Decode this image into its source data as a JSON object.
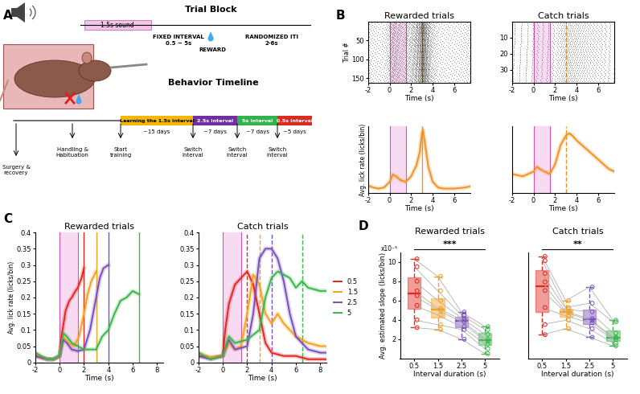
{
  "panel_labels": [
    "A",
    "B",
    "C",
    "D"
  ],
  "diagram": {
    "trial_block": {
      "title": "Trial Block",
      "sound": "1.5s sound",
      "interval": "FIXED INTERVAL\n0.5 ~ 5s",
      "reward": "REWARD",
      "iti": "RANDOMIZED ITI\n2-6s"
    },
    "timeline": {
      "title": "Behavior Timeline",
      "events": [
        "Surgery &\nrecovery",
        "Handling &\nHabituation",
        "Start\ntraining",
        "Switch\ninterval",
        "Switch\ninterval",
        "Switch\ninterval"
      ],
      "stages": [
        {
          "label": "Learning the 1.5s interval",
          "duration": "~15 days",
          "color": "#f5b700"
        },
        {
          "label": "2.5s interval",
          "duration": "~7 days",
          "color": "#7030a0"
        },
        {
          "label": "5s interval",
          "duration": "~7 days",
          "color": "#2fb34a"
        },
        {
          "label": "0.5s interval",
          "duration": "~5 days",
          "color": "#d92b1f"
        }
      ]
    }
  },
  "chart_data": [
    {
      "type": "raster",
      "title": "Rewarded trials",
      "x_label": "Time (s)",
      "y_label": "Trial #",
      "xlim": [
        -2,
        7.5
      ],
      "xticks": [
        -2,
        0,
        2,
        4,
        6
      ],
      "ylim": [
        162,
        0
      ],
      "yticks": [
        50,
        100,
        150
      ],
      "n_trials": 160,
      "sound": [
        0,
        1.5
      ],
      "reward_markers": [
        {
          "x": 3,
          "color": "#f39223",
          "line_style": "solid"
        }
      ]
    },
    {
      "type": "raster",
      "title": "Catch trials",
      "x_label": "Time (s)",
      "xlim": [
        -2,
        7.5
      ],
      "xticks": [
        -2,
        0,
        2,
        4,
        6
      ],
      "ylim": [
        38,
        0
      ],
      "yticks": [
        10,
        20,
        30
      ],
      "n_trials": 37,
      "sound": [
        0,
        1.5
      ],
      "reward_markers": [
        {
          "x": 3,
          "color": "#f39223",
          "line_style": "dashed"
        }
      ]
    },
    {
      "type": "line",
      "x_label": "Time (s)",
      "y_label": "Avg. lick rate (licks/bin)",
      "xlim": [
        -2,
        7.5
      ],
      "xticks": [
        -2,
        0,
        2,
        4,
        6
      ],
      "ylim": [
        0,
        0.18
      ],
      "tick_labels": "x",
      "sound": [
        0,
        1.5
      ],
      "reward_markers": [
        {
          "x": 3,
          "color": "#f39223",
          "line_style": "solid"
        }
      ],
      "series": [
        {
          "color": "#f39223",
          "x": [
            -2,
            -1.5,
            -1,
            -0.5,
            0,
            0.3,
            0.6,
            1,
            1.5,
            2,
            2.5,
            2.8,
            3,
            3.1,
            3.3,
            3.6,
            4,
            4.5,
            5,
            6,
            7,
            7.5
          ],
          "values": [
            0.02,
            0.015,
            0.012,
            0.015,
            0.03,
            0.05,
            0.045,
            0.035,
            0.03,
            0.045,
            0.075,
            0.11,
            0.16,
            0.17,
            0.13,
            0.07,
            0.03,
            0.015,
            0.012,
            0.012,
            0.015,
            0.018
          ]
        }
      ]
    },
    {
      "type": "line",
      "x_label": "Time (s)",
      "xlim": [
        -2,
        7.5
      ],
      "xticks": [
        -2,
        0,
        2,
        4,
        6
      ],
      "ylim": [
        0,
        0.14
      ],
      "tick_labels": "x",
      "sound": [
        0,
        1.5
      ],
      "reward_markers": [
        {
          "x": 3,
          "color": "#f39223",
          "line_style": "dashed"
        }
      ],
      "series": [
        {
          "color": "#f39223",
          "x": [
            -2,
            -1,
            0,
            0.3,
            0.6,
            1,
            1.5,
            2,
            2.5,
            3,
            3.3,
            3.6,
            4,
            5,
            6,
            7,
            7.5
          ],
          "values": [
            0.04,
            0.035,
            0.045,
            0.055,
            0.05,
            0.045,
            0.04,
            0.06,
            0.1,
            0.12,
            0.125,
            0.12,
            0.11,
            0.09,
            0.07,
            0.05,
            0.045
          ]
        }
      ]
    },
    {
      "type": "line",
      "title": "Rewarded trials",
      "x_label": "Time (s)",
      "y_label": "Avg. lick rate (licks/bin)",
      "xlim": [
        -2,
        8.5
      ],
      "xticks": [
        -2,
        0,
        2,
        4,
        6,
        8
      ],
      "ylim": [
        0,
        0.4
      ],
      "yticks": [
        0,
        0.05,
        0.1,
        0.15,
        0.2,
        0.25,
        0.3,
        0.35,
        0.4
      ],
      "sound": [
        0,
        1.5
      ],
      "reward_markers": [
        {
          "x": 2,
          "color": "#e3271e",
          "line_style": "solid"
        },
        {
          "x": 3,
          "color": "#f5a021",
          "line_style": "solid"
        },
        {
          "x": 4,
          "color": "#7a4fbd",
          "line_style": "solid"
        },
        {
          "x": 6.5,
          "color": "#3cb54a",
          "line_style": "solid"
        }
      ],
      "series": [
        {
          "name": "0.5",
          "color": "#e3271e",
          "x": [
            -2,
            -1.5,
            -1,
            -0.5,
            0,
            0.2,
            0.5,
            0.8,
            1,
            1.3,
            1.5,
            1.8,
            2
          ],
          "values": [
            0.02,
            0.015,
            0.01,
            0.01,
            0.02,
            0.09,
            0.16,
            0.19,
            0.2,
            0.22,
            0.23,
            0.26,
            0.29
          ]
        },
        {
          "name": "1.5",
          "color": "#f5a021",
          "x": [
            -2,
            -1.5,
            -1,
            -0.5,
            0,
            0.3,
            0.7,
            1.2,
            1.6,
            2,
            2.3,
            2.6,
            3
          ],
          "values": [
            0.03,
            0.015,
            0.01,
            0.01,
            0.02,
            0.08,
            0.06,
            0.05,
            0.08,
            0.15,
            0.21,
            0.25,
            0.28
          ]
        },
        {
          "name": "2.5",
          "color": "#7a4fbd",
          "x": [
            -2,
            -1,
            -0.5,
            0,
            0.3,
            0.6,
            1,
            1.5,
            2,
            2.5,
            3,
            3.3,
            3.6,
            4
          ],
          "values": [
            0.02,
            0.01,
            0.01,
            0.02,
            0.07,
            0.06,
            0.04,
            0.035,
            0.04,
            0.1,
            0.2,
            0.26,
            0.29,
            0.3
          ]
        },
        {
          "name": "5",
          "color": "#3cb54a",
          "x": [
            -2,
            -1,
            -0.5,
            0,
            0.3,
            0.6,
            1,
            1.5,
            2,
            2.5,
            3,
            3.5,
            4,
            4.5,
            5,
            5.5,
            6,
            6.5
          ],
          "values": [
            0.03,
            0.01,
            0.01,
            0.02,
            0.09,
            0.08,
            0.06,
            0.05,
            0.04,
            0.04,
            0.04,
            0.08,
            0.1,
            0.15,
            0.19,
            0.2,
            0.22,
            0.21
          ]
        }
      ]
    },
    {
      "type": "line",
      "title": "Catch trials",
      "x_label": "Time (s)",
      "xlim": [
        -2,
        8.5
      ],
      "xticks": [
        -2,
        0,
        2,
        4,
        6,
        8
      ],
      "ylim": [
        0,
        0.4
      ],
      "yticks": [
        0,
        0.05,
        0.1,
        0.15,
        0.2,
        0.25,
        0.3,
        0.35,
        0.4
      ],
      "sound": [
        0,
        1.5
      ],
      "legend": "right",
      "reward_markers": [
        {
          "x": 2,
          "color": "#e3271e",
          "line_style": "dashed"
        },
        {
          "x": 3,
          "color": "#f5a021",
          "line_style": "dashed"
        },
        {
          "x": 4,
          "color": "#7a4fbd",
          "line_style": "dashed"
        },
        {
          "x": 6.5,
          "color": "#3cb54a",
          "line_style": "dashed"
        }
      ],
      "series": [
        {
          "name": "0.5",
          "color": "#e3271e",
          "x": [
            -2,
            -1,
            0,
            0.2,
            0.5,
            1,
            1.5,
            2,
            2.5,
            3,
            3.5,
            4,
            5,
            6,
            7,
            8,
            8.5
          ],
          "values": [
            0.02,
            0.015,
            0.02,
            0.1,
            0.18,
            0.24,
            0.26,
            0.28,
            0.24,
            0.15,
            0.06,
            0.03,
            0.02,
            0.02,
            0.01,
            0.01,
            0.01
          ]
        },
        {
          "name": "1.5",
          "color": "#f5a021",
          "x": [
            -2,
            -1,
            0,
            0.5,
            1,
            1.5,
            2,
            2.5,
            3,
            3.5,
            4,
            4.5,
            5,
            6,
            7,
            8,
            8.5
          ],
          "values": [
            0.03,
            0.015,
            0.02,
            0.06,
            0.04,
            0.05,
            0.15,
            0.27,
            0.24,
            0.15,
            0.12,
            0.15,
            0.12,
            0.08,
            0.06,
            0.05,
            0.05
          ]
        },
        {
          "name": "2.5",
          "color": "#7a4fbd",
          "x": [
            -2,
            -1,
            0,
            0.5,
            1,
            2,
            2.5,
            3,
            3.5,
            4,
            4.5,
            5,
            5.5,
            6,
            7,
            8,
            8.5
          ],
          "values": [
            0.02,
            0.01,
            0.02,
            0.07,
            0.04,
            0.05,
            0.15,
            0.32,
            0.35,
            0.35,
            0.32,
            0.25,
            0.15,
            0.08,
            0.04,
            0.03,
            0.03
          ]
        },
        {
          "name": "5",
          "color": "#3cb54a",
          "x": [
            -2,
            -1,
            0,
            0.5,
            1,
            2,
            3,
            3.5,
            4,
            4.5,
            5,
            5.5,
            6,
            6.5,
            7,
            8,
            8.5
          ],
          "values": [
            0.03,
            0.01,
            0.02,
            0.08,
            0.06,
            0.07,
            0.1,
            0.2,
            0.26,
            0.28,
            0.27,
            0.26,
            0.23,
            0.25,
            0.23,
            0.22,
            0.22
          ]
        }
      ]
    },
    {
      "type": "box",
      "title": "Rewarded trials",
      "x_label": "Interval duration (s)",
      "y_label": "Avg. estimated slope (licks/bin)",
      "y_multiplier": "x10⁻⁵",
      "categories": [
        "0.5",
        "1.5",
        "2.5",
        "5"
      ],
      "colors": [
        "#e3271e",
        "#f5a021",
        "#7a4fbd",
        "#3cb54a"
      ],
      "ylim": [
        0,
        11
      ],
      "yticks": [
        2,
        4,
        6,
        8,
        10
      ],
      "significance": "***",
      "values": [
        [
          10.3,
          9.5,
          8,
          7,
          6.5,
          5.5,
          4,
          3.2
        ],
        [
          8.5,
          7,
          6,
          5.2,
          5,
          4.5,
          3.5,
          3
        ],
        [
          4.8,
          4.5,
          4.2,
          4,
          3.8,
          3.3,
          3,
          2
        ],
        [
          3.3,
          3,
          2.5,
          2,
          1.8,
          1.5,
          1,
          0.5
        ]
      ]
    },
    {
      "type": "box",
      "title": "Catch trials",
      "x_label": "Interval duration (s)",
      "categories": [
        "0.5",
        "1.5",
        "2.5",
        "5"
      ],
      "colors": [
        "#e3271e",
        "#f5a021",
        "#7a4fbd",
        "#3cb54a"
      ],
      "ylim": [
        0,
        12.5
      ],
      "tick_labels": "x",
      "significance": "**",
      "values": [
        [
          12,
          11.5,
          10,
          9,
          8,
          6,
          4,
          2.8
        ],
        [
          6.8,
          6,
          5.8,
          5.5,
          5.4,
          5,
          4.5,
          3.5
        ],
        [
          8.4,
          6.5,
          5.5,
          4.7,
          4.5,
          4.2,
          3.5,
          2.5
        ],
        [
          4.5,
          4.3,
          3,
          2.5,
          2.4,
          2.2,
          1.8,
          1.5
        ]
      ]
    }
  ]
}
